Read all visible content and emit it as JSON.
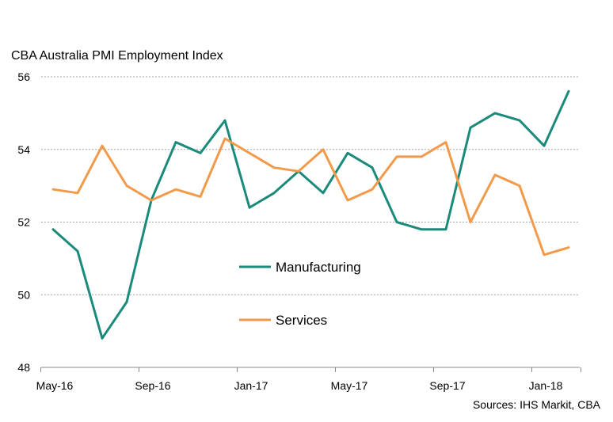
{
  "chart_data": {
    "type": "line",
    "title": "CBA Australia PMI Employment Index",
    "source": "Sources: IHS Markit, CBA",
    "xlabel": "",
    "ylabel": "",
    "ylim": [
      48,
      56
    ],
    "yticks": [
      48,
      50,
      52,
      54,
      56
    ],
    "grid": true,
    "legend_position": "center",
    "x": [
      "May-16",
      "Jun-16",
      "Jul-16",
      "Aug-16",
      "Sep-16",
      "Oct-16",
      "Nov-16",
      "Dec-16",
      "Jan-17",
      "Feb-17",
      "Mar-17",
      "Apr-17",
      "May-17",
      "Jun-17",
      "Jul-17",
      "Aug-17",
      "Sep-17",
      "Oct-17",
      "Nov-17",
      "Dec-17",
      "Jan-18",
      "Feb-18"
    ],
    "xtick_labels": [
      "May-16",
      "Sep-16",
      "Jan-17",
      "May-17",
      "Sep-17",
      "Jan-18"
    ],
    "series": [
      {
        "name": "Manufacturing",
        "color": "#1a8a7a",
        "values": [
          51.8,
          51.2,
          48.8,
          49.8,
          52.6,
          54.2,
          53.9,
          54.8,
          52.4,
          52.8,
          53.4,
          52.8,
          53.9,
          53.5,
          52.0,
          51.8,
          51.8,
          54.6,
          55.0,
          54.8,
          54.1,
          55.6
        ]
      },
      {
        "name": "Services",
        "color": "#f29a4a",
        "values": [
          52.9,
          52.8,
          54.1,
          53.0,
          52.6,
          52.9,
          52.7,
          54.3,
          53.9,
          53.5,
          53.4,
          54.0,
          52.6,
          52.9,
          53.8,
          53.8,
          54.2,
          52.0,
          53.3,
          53.0,
          51.1,
          51.3
        ]
      }
    ]
  }
}
